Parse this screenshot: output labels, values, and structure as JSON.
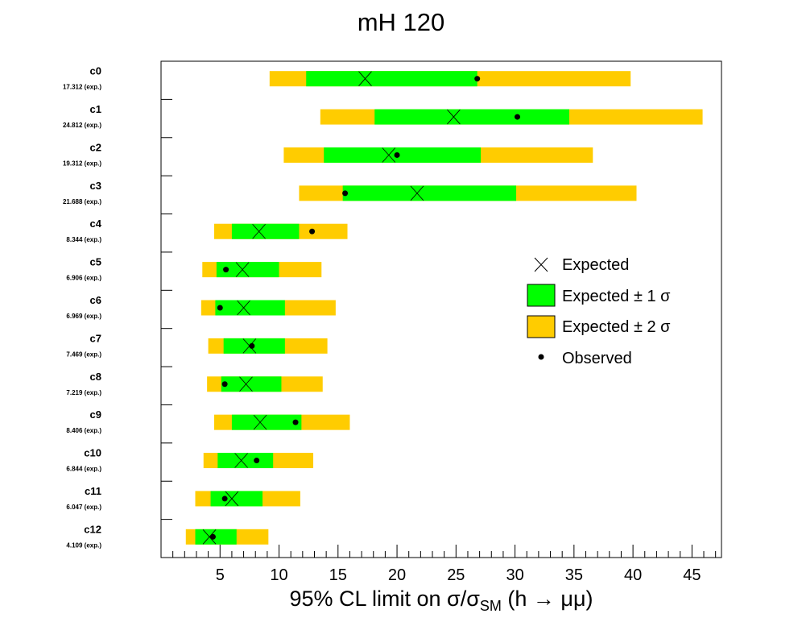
{
  "chart_data": {
    "type": "interval",
    "title": "mH 120",
    "xlabel": "95% CL limit on σ/σSM (h → μμ)",
    "xlim": [
      0,
      47.5
    ],
    "x_ticks": [
      5,
      10,
      15,
      20,
      25,
      30,
      35,
      40,
      45
    ],
    "legend": {
      "placement": "right",
      "entries": [
        "Expected",
        "Expected ± 1 σ",
        "Expected ± 2 σ",
        "Observed"
      ]
    },
    "colors": {
      "one_sigma": "#00ff00",
      "two_sigma": "#ffcc00",
      "marker": "#000000"
    },
    "categories": [
      {
        "name": "c0",
        "note": "17.312 (exp.)",
        "expected": 17.3,
        "observed": 26.8,
        "s1": [
          12.3,
          26.8
        ],
        "s2": [
          9.2,
          39.8
        ]
      },
      {
        "name": "c1",
        "note": "24.812 (exp.)",
        "expected": 24.8,
        "observed": 30.2,
        "s1": [
          18.1,
          34.6
        ],
        "s2": [
          13.5,
          45.9
        ]
      },
      {
        "name": "c2",
        "note": "19.312 (exp.)",
        "expected": 19.3,
        "observed": 20.0,
        "s1": [
          13.8,
          27.1
        ],
        "s2": [
          10.4,
          36.6
        ]
      },
      {
        "name": "c3",
        "note": "21.688 (exp.)",
        "expected": 21.7,
        "observed": 15.6,
        "s1": [
          15.4,
          30.1
        ],
        "s2": [
          11.7,
          40.3
        ]
      },
      {
        "name": "c4",
        "note": "8.344 (exp.)",
        "expected": 8.3,
        "observed": 12.8,
        "s1": [
          6.0,
          11.7
        ],
        "s2": [
          4.5,
          15.8
        ]
      },
      {
        "name": "c5",
        "note": "6.906 (exp.)",
        "expected": 6.9,
        "observed": 5.5,
        "s1": [
          4.7,
          10.0
        ],
        "s2": [
          3.5,
          13.6
        ]
      },
      {
        "name": "c6",
        "note": "6.969 (exp.)",
        "expected": 7.0,
        "observed": 5.0,
        "s1": [
          4.6,
          10.5
        ],
        "s2": [
          3.4,
          14.8
        ]
      },
      {
        "name": "c7",
        "note": "7.469 (exp.)",
        "expected": 7.5,
        "observed": 7.7,
        "s1": [
          5.3,
          10.5
        ],
        "s2": [
          4.0,
          14.1
        ]
      },
      {
        "name": "c8",
        "note": "7.219 (exp.)",
        "expected": 7.2,
        "observed": 5.4,
        "s1": [
          5.1,
          10.2
        ],
        "s2": [
          3.9,
          13.7
        ]
      },
      {
        "name": "c9",
        "note": "8.406 (exp.)",
        "expected": 8.4,
        "observed": 11.4,
        "s1": [
          6.0,
          11.9
        ],
        "s2": [
          4.5,
          16.0
        ]
      },
      {
        "name": "c10",
        "note": "6.844 (exp.)",
        "expected": 6.8,
        "observed": 8.1,
        "s1": [
          4.8,
          9.5
        ],
        "s2": [
          3.6,
          12.9
        ]
      },
      {
        "name": "c11",
        "note": "6.047 (exp.)",
        "expected": 6.0,
        "observed": 5.4,
        "s1": [
          4.2,
          8.6
        ],
        "s2": [
          2.9,
          11.8
        ]
      },
      {
        "name": "c12",
        "note": "4.109 (exp.)",
        "expected": 4.1,
        "observed": 4.4,
        "s1": [
          2.9,
          6.4
        ],
        "s2": [
          2.1,
          9.1
        ]
      }
    ]
  }
}
